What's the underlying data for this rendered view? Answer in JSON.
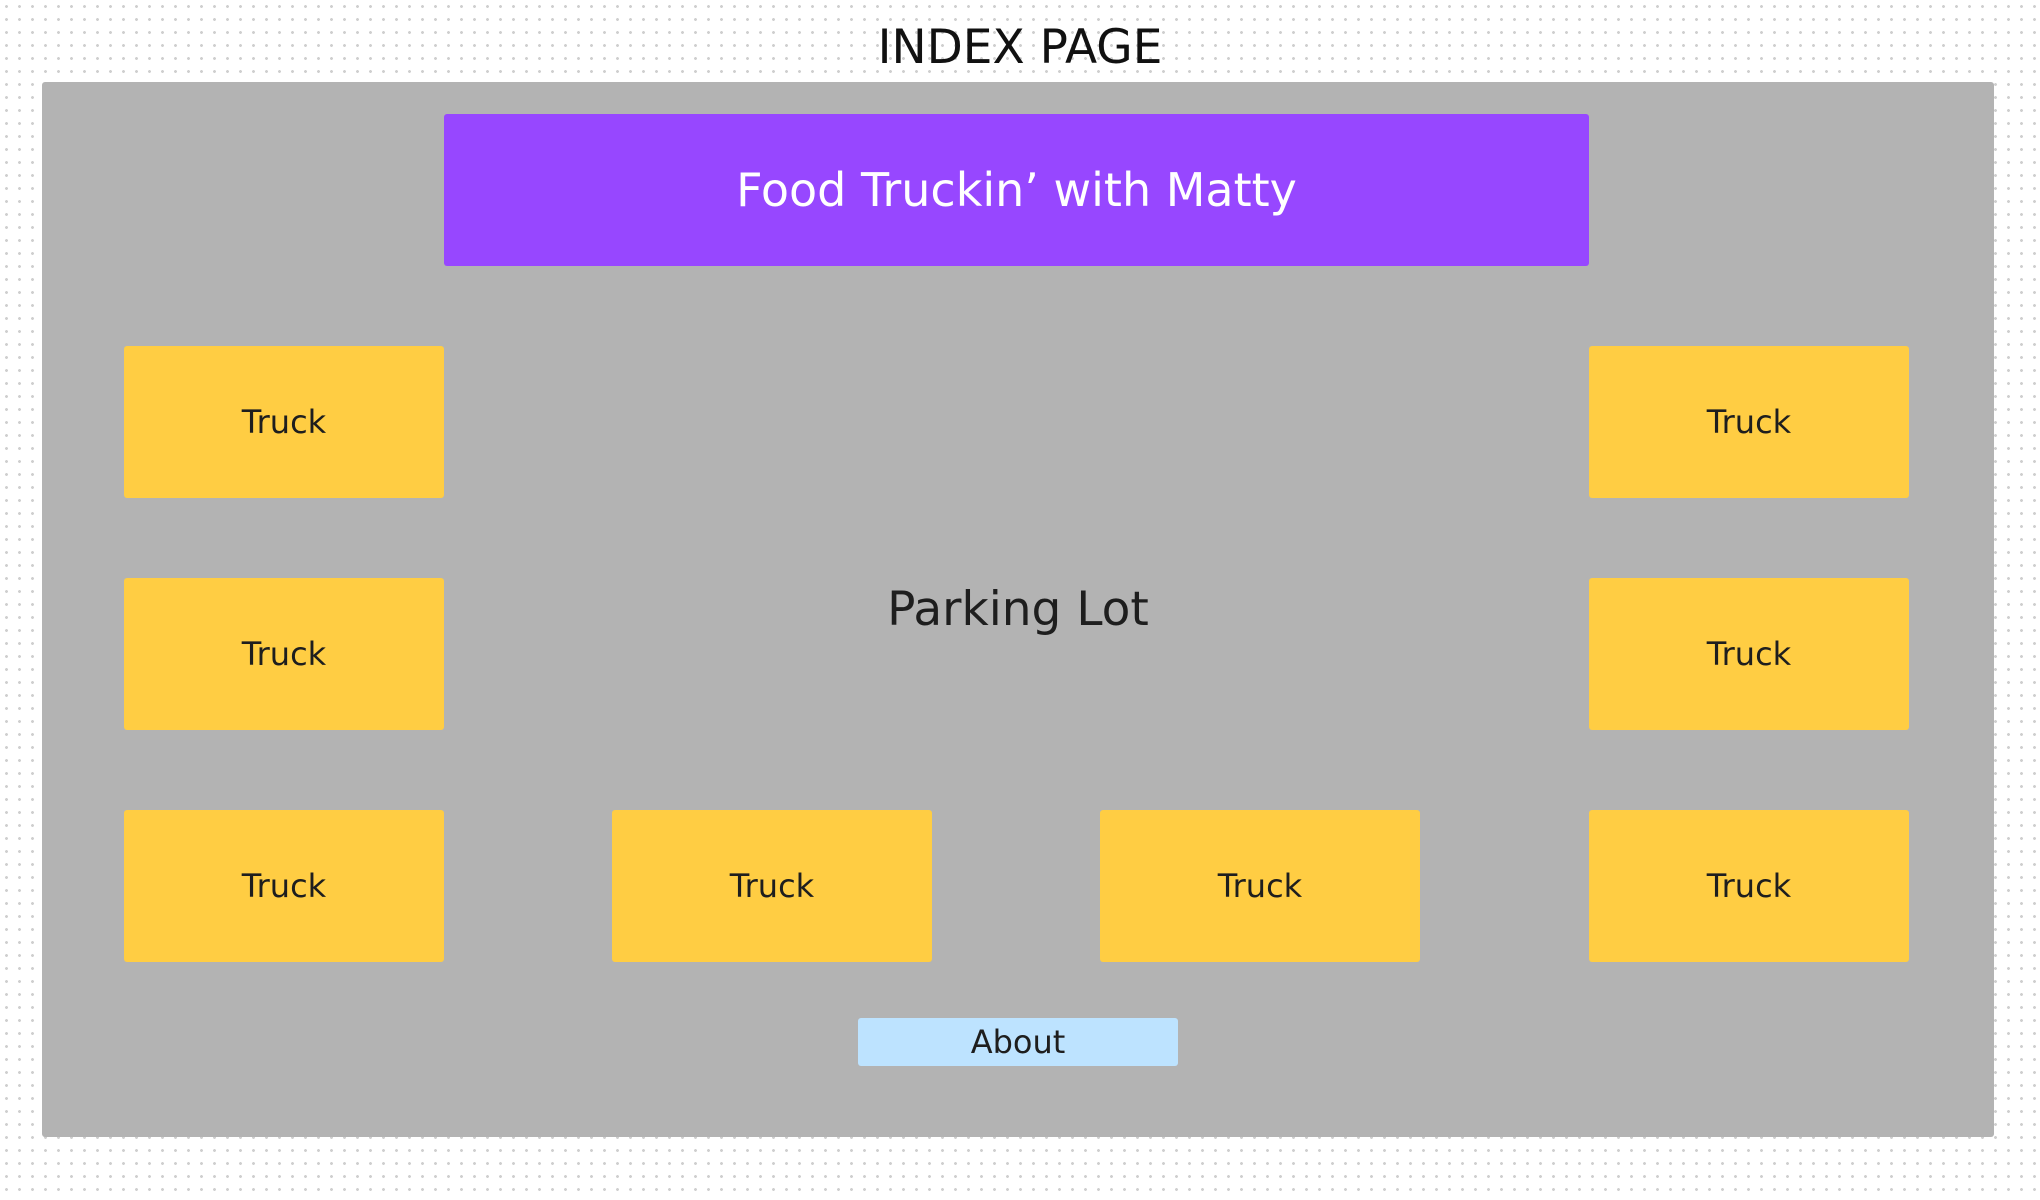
{
  "page_label": "INDEX PAGE",
  "header": {
    "title": "Food Truckin’ with Matty"
  },
  "parking_lot": {
    "label": "Parking Lot"
  },
  "trucks": [
    {
      "label": "Truck"
    },
    {
      "label": "Truck"
    },
    {
      "label": "Truck"
    },
    {
      "label": "Truck"
    },
    {
      "label": "Truck"
    },
    {
      "label": "Truck"
    },
    {
      "label": "Truck"
    },
    {
      "label": "Truck"
    }
  ],
  "about": {
    "label": "About"
  },
  "colors": {
    "frame": "#b3b3b3",
    "header": "#9747ff",
    "truck": "#ffcd43",
    "about": "#bde3ff"
  }
}
